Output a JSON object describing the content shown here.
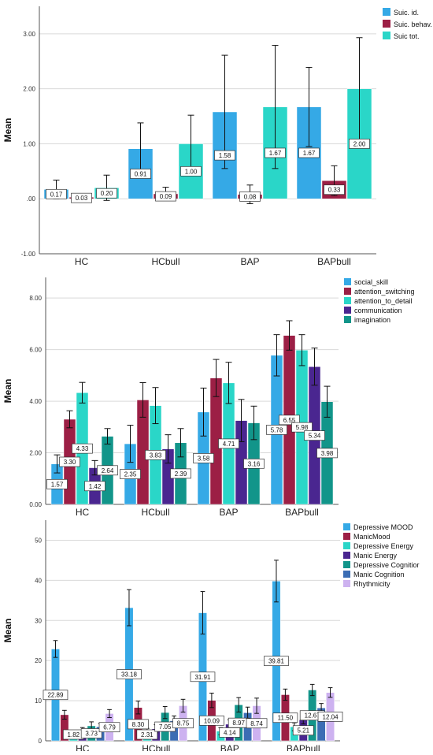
{
  "chart_data": [
    {
      "type": "bar",
      "categories": [
        "HC",
        "HCbull",
        "BAP",
        "BAPbull"
      ],
      "ylabel": "Mean",
      "ylim": [
        -1,
        3.5
      ],
      "yticks": [
        "-1.00",
        ".00",
        "1.00",
        "2.00",
        "3.00"
      ],
      "grid": true,
      "legend_position": "top-right",
      "series": [
        {
          "name": "Suic. id.",
          "color": "#35a9e6",
          "values": [
            0.17,
            0.91,
            1.58,
            1.67
          ],
          "labels": [
            "0.17",
            "0.91",
            "1.58",
            "1.67"
          ],
          "err": [
            0.17,
            0.47,
            1.03,
            0.72
          ]
        },
        {
          "name": "Suic. behav.",
          "color": "#9c1f45",
          "values": [
            0.03,
            0.09,
            0.08,
            0.33
          ],
          "labels": [
            "0.03",
            "0.09",
            "0.08",
            "0.33"
          ],
          "err": [
            0.06,
            0.12,
            0.17,
            0.27
          ]
        },
        {
          "name": "Suic tot.",
          "color": "#2ad6c8",
          "values": [
            0.2,
            1.0,
            1.67,
            2.0
          ],
          "labels": [
            "0.20",
            "1.00",
            "1.67",
            "2.00"
          ],
          "err": [
            0.23,
            0.52,
            1.12,
            0.93
          ]
        }
      ]
    },
    {
      "type": "bar",
      "categories": [
        "HC",
        "HCbull",
        "BAP",
        "BAPbull"
      ],
      "ylabel": "Mean",
      "ylim": [
        0,
        8.8
      ],
      "yticks": [
        "0.00",
        "2.00",
        "4.00",
        "6.00",
        "8.00"
      ],
      "grid": true,
      "legend_position": "top-right",
      "series": [
        {
          "name": "social_skill",
          "color": "#35a9e6",
          "values": [
            1.57,
            2.35,
            3.58,
            5.78
          ],
          "labels": [
            "1.57",
            "2.35",
            "3.58",
            "5.78"
          ],
          "err": [
            0.35,
            0.72,
            0.93,
            0.8
          ]
        },
        {
          "name": "attention_switching",
          "color": "#9c1f45",
          "values": [
            3.3,
            4.05,
            4.9,
            6.55
          ],
          "labels": [
            "3.30",
            "",
            "",
            "6.55"
          ],
          "err": [
            0.33,
            0.67,
            0.72,
            0.57
          ]
        },
        {
          "name": "attention_to_detail",
          "color": "#2ad6c8",
          "values": [
            4.33,
            3.83,
            4.71,
            5.98
          ],
          "labels": [
            "4.33",
            "3.83",
            "4.71",
            "5.98"
          ],
          "err": [
            0.4,
            0.7,
            0.8,
            0.6
          ]
        },
        {
          "name": "communication",
          "color": "#4a2690",
          "values": [
            1.42,
            2.15,
            3.25,
            5.34
          ],
          "labels": [
            "1.42",
            "",
            "",
            "5.34"
          ],
          "err": [
            0.28,
            0.55,
            0.82,
            0.72
          ]
        },
        {
          "name": "imagination",
          "color": "#12958a",
          "values": [
            2.64,
            2.39,
            3.16,
            3.98
          ],
          "labels": [
            "2.64",
            "2.39",
            "3.16",
            "3.98"
          ],
          "err": [
            0.3,
            0.55,
            0.65,
            0.6
          ]
        }
      ]
    },
    {
      "type": "bar",
      "categories": [
        "HC",
        "HCbull",
        "BAP",
        "BAPbull"
      ],
      "ylabel": "Mean",
      "ylim": [
        0,
        55
      ],
      "yticks": [
        "0",
        "10",
        "20",
        "30",
        "40",
        "50"
      ],
      "grid": true,
      "legend_position": "top-right",
      "series": [
        {
          "name": "Depressive MOOD",
          "color": "#35a9e6",
          "values": [
            22.89,
            33.18,
            31.91,
            39.81
          ],
          "labels": [
            "22.89",
            "33.18",
            "31.91",
            "39.81"
          ],
          "err": [
            2.1,
            4.5,
            5.3,
            5.2
          ]
        },
        {
          "name": "ManicMood",
          "color": "#9c1f45",
          "values": [
            6.5,
            8.3,
            10.09,
            11.5
          ],
          "labels": [
            "",
            "8.30",
            "10.09",
            "11.50"
          ],
          "err": [
            1.1,
            1.6,
            1.8,
            1.4
          ]
        },
        {
          "name": "Depressive Energy",
          "color": "#2ad6c8",
          "values": [
            1.82,
            2.31,
            2.4,
            3.5
          ],
          "labels": [
            "1.82",
            "2.31",
            "",
            ""
          ],
          "err": [
            0.8,
            0.8,
            0.9,
            1.0
          ]
        },
        {
          "name": "Manic Energy",
          "color": "#4a2690",
          "values": [
            2.5,
            3.0,
            4.14,
            5.21
          ],
          "labels": [
            "",
            "",
            "4.14",
            "5.21"
          ],
          "err": [
            0.8,
            1.0,
            1.1,
            1.0
          ]
        },
        {
          "name": "Depressive Cognitior",
          "color": "#12958a",
          "values": [
            3.73,
            7.05,
            8.97,
            12.67
          ],
          "labels": [
            "3.73",
            "7.05",
            "8.97",
            "12.67"
          ],
          "err": [
            1.0,
            1.5,
            1.8,
            1.4
          ]
        },
        {
          "name": "Manic Cognition",
          "color": "#3b6db4",
          "values": [
            3.5,
            5.0,
            7.0,
            8.2
          ],
          "labels": [
            "",
            "",
            "",
            ""
          ],
          "err": [
            0.8,
            1.2,
            1.4,
            1.1
          ]
        },
        {
          "name": "Rhythmicity",
          "color": "#cdb2f0",
          "values": [
            6.79,
            8.75,
            8.74,
            12.04
          ],
          "labels": [
            "6.79",
            "8.75",
            "8.74",
            "12.04"
          ],
          "err": [
            1.0,
            1.6,
            1.9,
            1.2
          ]
        }
      ]
    }
  ]
}
